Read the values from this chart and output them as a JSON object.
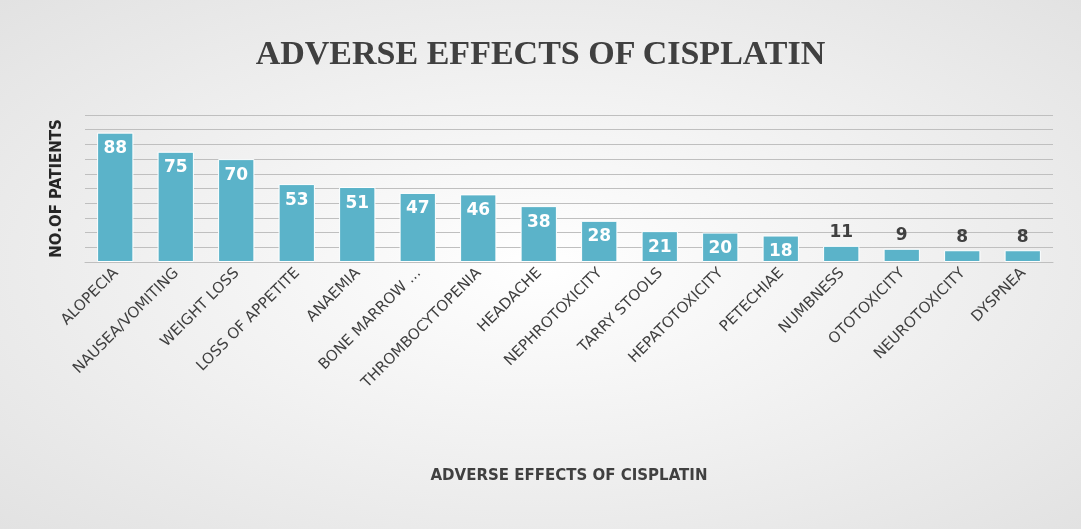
{
  "chart_data": {
    "type": "bar",
    "title": "ADVERSE EFFECTS OF CISPLATIN",
    "xlabel": "ADVERSE EFFECTS OF CISPLATIN",
    "ylabel": "NO.OF PATIENTS",
    "categories": [
      "ALOPECIA",
      "NAUSEA/VOMITING",
      "WEIGHT LOSS",
      "LOSS OF APPETITE",
      "ANAEMIA",
      "BONE MARROW ...",
      "THROMBOCYTOPENIA",
      "HEADACHE",
      "NEPHROTOXICITY",
      "TARRY STOOLS",
      "HEPATOTOXICITY",
      "PETECHIAE",
      "NUMBNESS",
      "OTOTOXICITY",
      "NEUROTOXICITY",
      "DYSPNEA"
    ],
    "values": [
      88,
      75,
      70,
      53,
      51,
      47,
      46,
      38,
      28,
      21,
      20,
      18,
      11,
      9,
      8,
      8
    ],
    "color": "#5bb3c9",
    "data_labels": true,
    "grid": "y",
    "ylim": [
      0,
      100
    ],
    "yticks": [
      {
        "value": 0,
        "label": null
      },
      {
        "value": 10,
        "label": null
      },
      {
        "value": 20,
        "label": null
      },
      {
        "value": 30,
        "label": null
      },
      {
        "value": 40,
        "label": null
      },
      {
        "value": 50,
        "label": null
      },
      {
        "value": 60,
        "label": null
      },
      {
        "value": 70,
        "label": null
      },
      {
        "value": 80,
        "label": null
      },
      {
        "value": 90,
        "label": null
      },
      {
        "value": 100,
        "label": null
      }
    ]
  }
}
